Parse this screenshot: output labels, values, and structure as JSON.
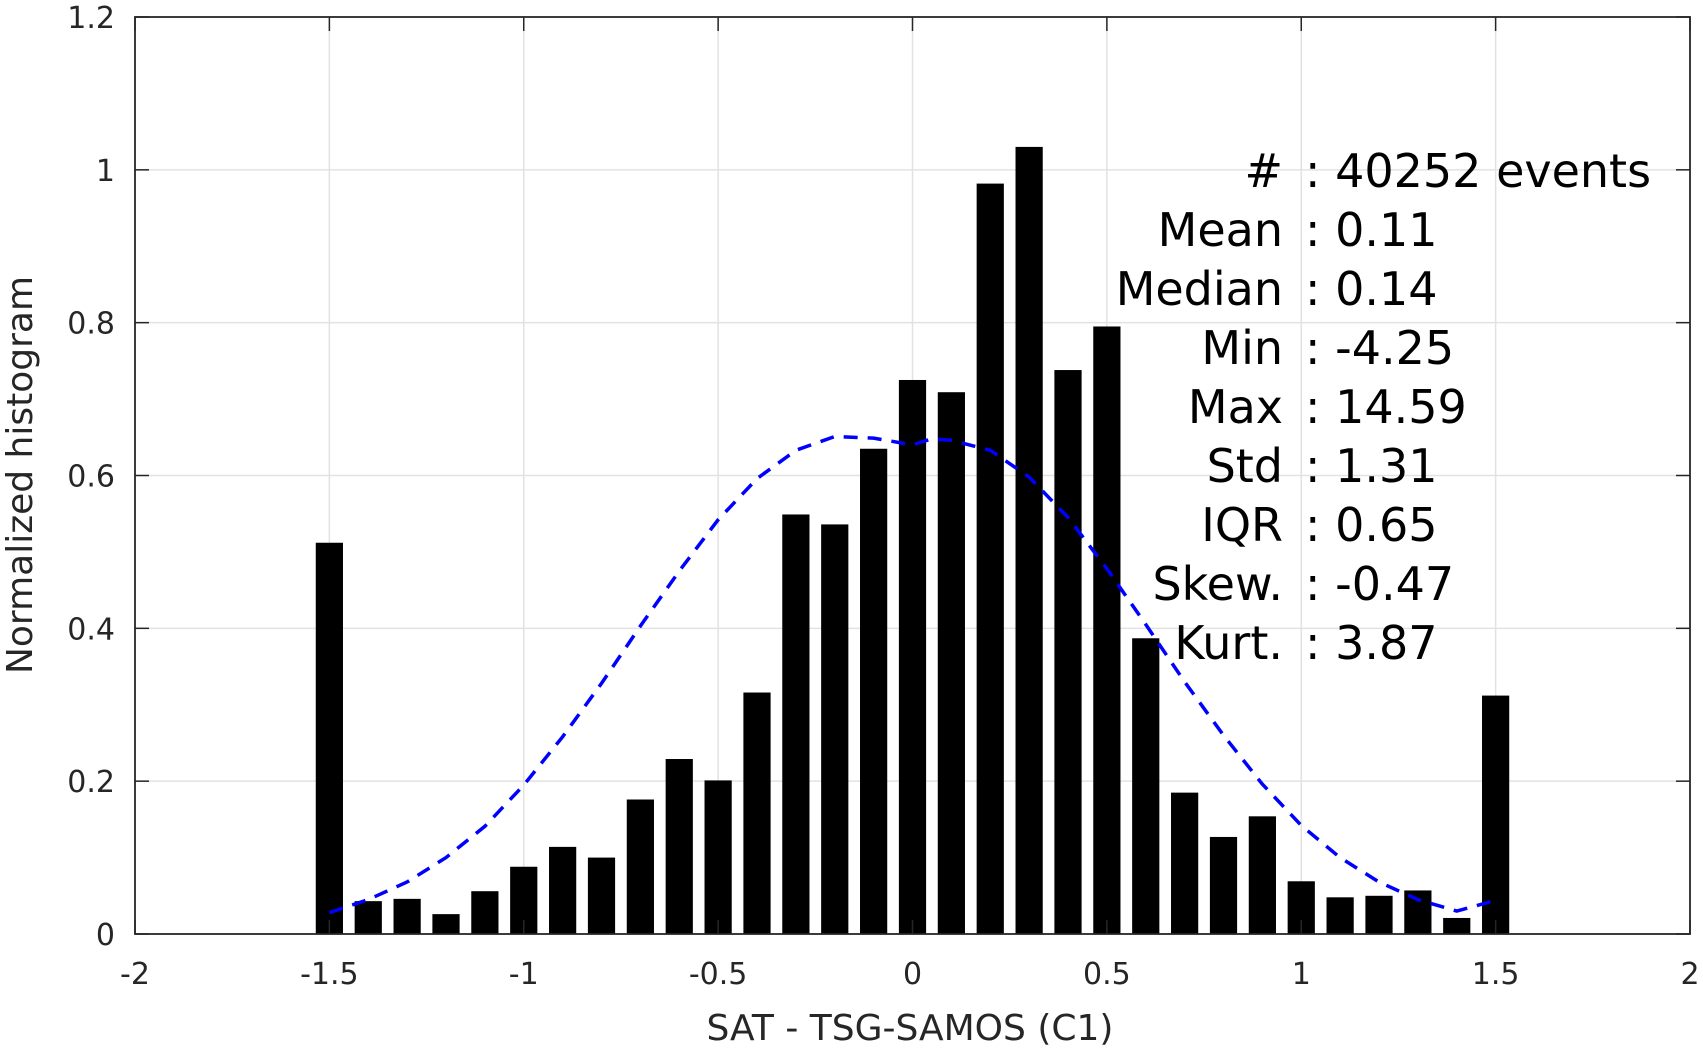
{
  "chart_data": {
    "type": "bar",
    "title": "",
    "xlabel": "SAT - TSG-SAMOS (C1)",
    "ylabel": "Normalized histogram",
    "xlim": [
      -2,
      2
    ],
    "ylim": [
      0,
      1.2
    ],
    "grid": true,
    "xticks": [
      -2,
      -1.5,
      -1,
      -0.5,
      0,
      0.5,
      1,
      1.5,
      2
    ],
    "xtick_labels": [
      "-2",
      "-1.5",
      "-1",
      "-0.5",
      "0",
      "0.5",
      "1",
      "1.5",
      "2"
    ],
    "yticks": [
      0,
      0.2,
      0.4,
      0.6,
      0.8,
      1,
      1.2
    ],
    "ytick_labels": [
      "0",
      "0.2",
      "0.4",
      "0.6",
      "0.8",
      "1",
      "1.2"
    ],
    "bar_width": 0.07,
    "bars": {
      "x": [
        -1.5,
        -1.4,
        -1.3,
        -1.2,
        -1.1,
        -1.0,
        -0.9,
        -0.8,
        -0.7,
        -0.6,
        -0.5,
        -0.4,
        -0.3,
        -0.2,
        -0.1,
        0.0,
        0.1,
        0.2,
        0.3,
        0.4,
        0.5,
        0.6,
        0.7,
        0.8,
        0.9,
        1.0,
        1.1,
        1.2,
        1.3,
        1.4,
        1.5
      ],
      "values": [
        0.512,
        0.043,
        0.046,
        0.026,
        0.056,
        0.088,
        0.114,
        0.1,
        0.176,
        0.229,
        0.201,
        0.316,
        0.549,
        0.536,
        0.635,
        0.725,
        0.709,
        0.982,
        1.03,
        0.738,
        0.795,
        0.387,
        0.185,
        0.127,
        0.154,
        0.069,
        0.048,
        0.05,
        0.057,
        0.021,
        0.312
      ],
      "color": "#000000"
    },
    "fit_curve": {
      "style": "dashed",
      "color": "#0000ff",
      "x": [
        -1.5,
        -1.4,
        -1.3,
        -1.2,
        -1.1,
        -1.0,
        -0.9,
        -0.8,
        -0.7,
        -0.6,
        -0.5,
        -0.4,
        -0.3,
        -0.2,
        -0.1,
        0.0,
        0.05,
        0.1,
        0.2,
        0.3,
        0.4,
        0.5,
        0.6,
        0.7,
        0.8,
        0.9,
        1.0,
        1.1,
        1.2,
        1.3,
        1.4,
        1.5
      ],
      "y": [
        0.028,
        0.045,
        0.068,
        0.1,
        0.141,
        0.195,
        0.258,
        0.328,
        0.403,
        0.475,
        0.542,
        0.596,
        0.633,
        0.651,
        0.649,
        0.64,
        0.648,
        0.646,
        0.633,
        0.598,
        0.545,
        0.478,
        0.405,
        0.33,
        0.26,
        0.196,
        0.142,
        0.1,
        0.068,
        0.045,
        0.03,
        0.044
      ]
    },
    "annotations": [
      {
        "label": "#",
        "value": ": 40252 events"
      },
      {
        "label": "Mean",
        "value": ": 0.11"
      },
      {
        "label": "Median",
        "value": ": 0.14"
      },
      {
        "label": "Min",
        "value": ": -4.25"
      },
      {
        "label": "Max",
        "value": ": 14.59"
      },
      {
        "label": "Std",
        "value": ": 1.31"
      },
      {
        "label": "IQR",
        "value": ": 0.65"
      },
      {
        "label": "Skew.",
        "value": ": -0.47"
      },
      {
        "label": "Kurt.",
        "value": ": 3.87"
      }
    ]
  }
}
